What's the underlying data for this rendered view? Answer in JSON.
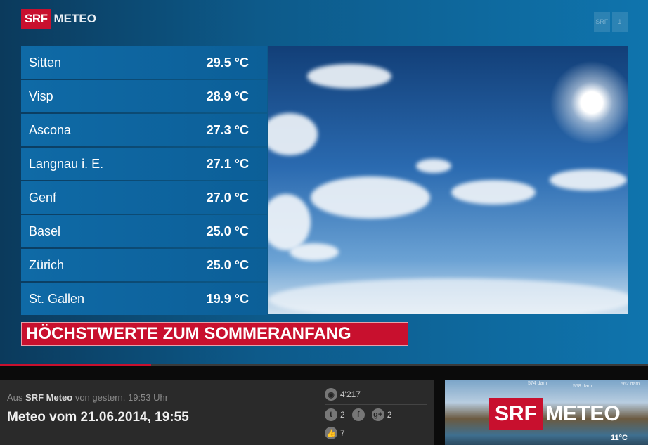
{
  "video": {
    "logo": {
      "srf": "SRF",
      "meteo": "METEO"
    },
    "channel_logo": {
      "srf": "SRF",
      "num": "1"
    },
    "rows": [
      {
        "city": "Sitten",
        "temp": "29.5 °C"
      },
      {
        "city": "Visp",
        "temp": "28.9 °C"
      },
      {
        "city": "Ascona",
        "temp": "27.3 °C"
      },
      {
        "city": "Langnau i. E.",
        "temp": "27.1 °C"
      },
      {
        "city": "Genf",
        "temp": "27.0 °C"
      },
      {
        "city": "Basel",
        "temp": "25.0 °C"
      },
      {
        "city": "Zürich",
        "temp": "25.0 °C"
      },
      {
        "city": "St. Gallen",
        "temp": "19.9 °C"
      }
    ],
    "banner": "HÖCHSTWERTE ZUM SOMMERANFANG",
    "progress_percent": 23.3,
    "accent": "#c8102e"
  },
  "info": {
    "prefix": "Aus",
    "source": "SRF Meteo",
    "time": "von gestern, 19:53 Uhr",
    "title": "Meteo vom 21.06.2014, 19:55",
    "views": "4'217",
    "twitter": "2",
    "gplus": "2",
    "likes": "7",
    "icons": {
      "views": "eye-icon",
      "twitter": "twitter-icon",
      "facebook": "facebook-icon",
      "gplus": "google-plus-icon",
      "likes": "thumbs-up-icon"
    }
  },
  "thumbnail": {
    "srf": "SRF",
    "meteo": "METEO",
    "labels": [
      "574 dam",
      "558 dam",
      "562 dam",
      "11°C"
    ]
  }
}
